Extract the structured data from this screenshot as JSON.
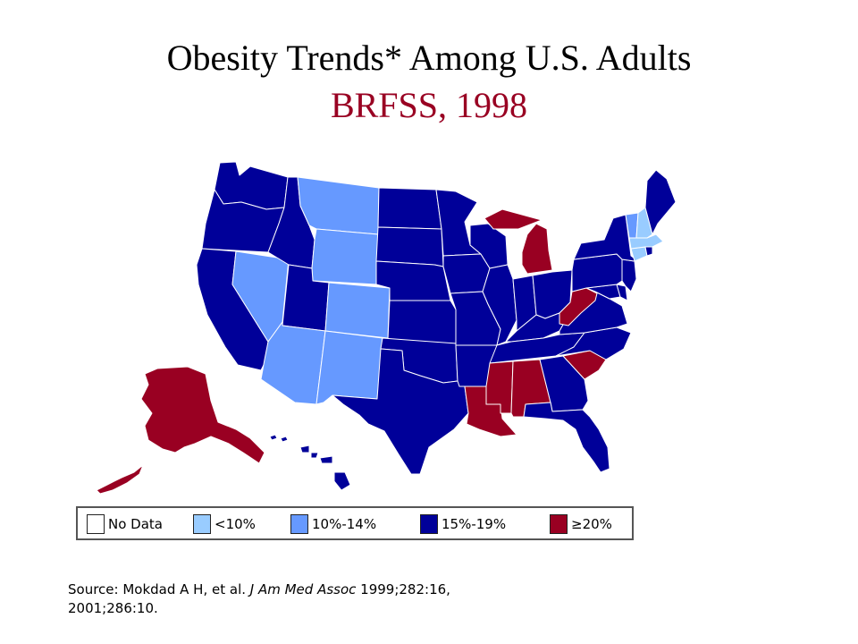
{
  "title": {
    "line1": "Obesity Trends* Among U.S. Adults",
    "line2": "BRFSS, 1998",
    "line2_color": "#990022"
  },
  "categories": {
    "no_data": {
      "label": "No Data",
      "color": "#ffffff"
    },
    "lt10": {
      "label": "<10%",
      "color": "#99ccff"
    },
    "r10_14": {
      "label": "10%-14%",
      "color": "#6699ff"
    },
    "r15_19": {
      "label": "15%-19%",
      "color": "#000099"
    },
    "ge20": {
      "label": "≥20%",
      "color": "#990022"
    }
  },
  "legend": {
    "items": [
      {
        "key": "no_data",
        "label": "No Data"
      },
      {
        "key": "lt10",
        "label": "<10%"
      },
      {
        "key": "r10_14",
        "label": "10%-14%"
      },
      {
        "key": "r15_19",
        "label": "15%-19%"
      },
      {
        "key": "ge20",
        "label": "≥20%"
      }
    ]
  },
  "states": {
    "WA": "r15_19",
    "OR": "r15_19",
    "CA": "r15_19",
    "NV": "r10_14",
    "ID": "r15_19",
    "MT": "r10_14",
    "WY": "r10_14",
    "UT": "r15_19",
    "CO": "r10_14",
    "AZ": "r10_14",
    "NM": "r10_14",
    "ND": "r15_19",
    "SD": "r15_19",
    "NE": "r15_19",
    "KS": "r15_19",
    "OK": "r15_19",
    "TX": "r15_19",
    "MN": "r15_19",
    "IA": "r15_19",
    "MO": "r15_19",
    "AR": "r15_19",
    "LA": "ge20",
    "WI": "r15_19",
    "IL": "r15_19",
    "MI": "ge20",
    "IN": "r15_19",
    "OH": "r15_19",
    "KY": "r15_19",
    "TN": "r15_19",
    "MS": "ge20",
    "AL": "ge20",
    "GA": "r15_19",
    "FL": "r15_19",
    "SC": "ge20",
    "NC": "r15_19",
    "VA": "r15_19",
    "WV": "ge20",
    "MD": "r15_19",
    "DE": "r15_19",
    "PA": "r15_19",
    "NJ": "r15_19",
    "NY": "r15_19",
    "CT": "lt10",
    "RI": "r15_19",
    "MA": "lt10",
    "VT": "r10_14",
    "NH": "lt10",
    "ME": "r15_19",
    "AK": "ge20",
    "HI": "r15_19"
  },
  "source": {
    "line1_a": "Source: Mokdad A H, et al. ",
    "line1_b": "J Am Med Assoc",
    "line1_c": " 1999;282:16,",
    "line2": "2001;286:10."
  }
}
